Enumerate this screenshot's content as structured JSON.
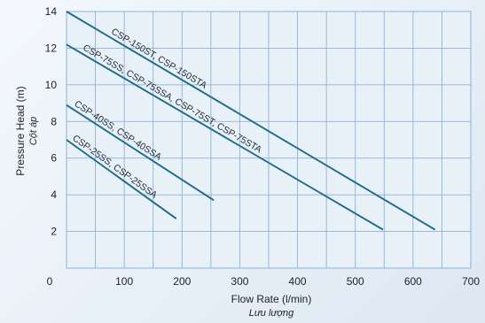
{
  "chart_data": {
    "type": "line",
    "xlabel": "Flow Rate (l/min)",
    "xlabel_sub": "Lưu lượng",
    "ylabel": "Pressure Head (m)",
    "ylabel_sub": "Cột áp",
    "xlim": [
      0,
      700
    ],
    "ylim": [
      0,
      14
    ],
    "x_ticks": [
      0,
      100,
      200,
      300,
      400,
      500,
      600,
      700
    ],
    "y_ticks": [
      2,
      4,
      6,
      8,
      10,
      12,
      14
    ],
    "grid": true,
    "line_color": "#1d6b8a",
    "series": [
      {
        "name": "CSP-150ST, CSP-150STA",
        "x": [
          0,
          638
        ],
        "y": [
          14.0,
          2.1
        ]
      },
      {
        "name": "CSP-75SS, CSP-75SSA, CSP-75ST, CSP-75STA",
        "x": [
          0,
          548
        ],
        "y": [
          12.2,
          2.1
        ]
      },
      {
        "name": "CSP-40SS, CSP-40SSA",
        "x": [
          0,
          255
        ],
        "y": [
          8.9,
          3.7
        ]
      },
      {
        "name": "CSP-25SS, CSP-25SSA",
        "x": [
          0,
          190
        ],
        "y": [
          7.0,
          2.7
        ]
      }
    ]
  }
}
